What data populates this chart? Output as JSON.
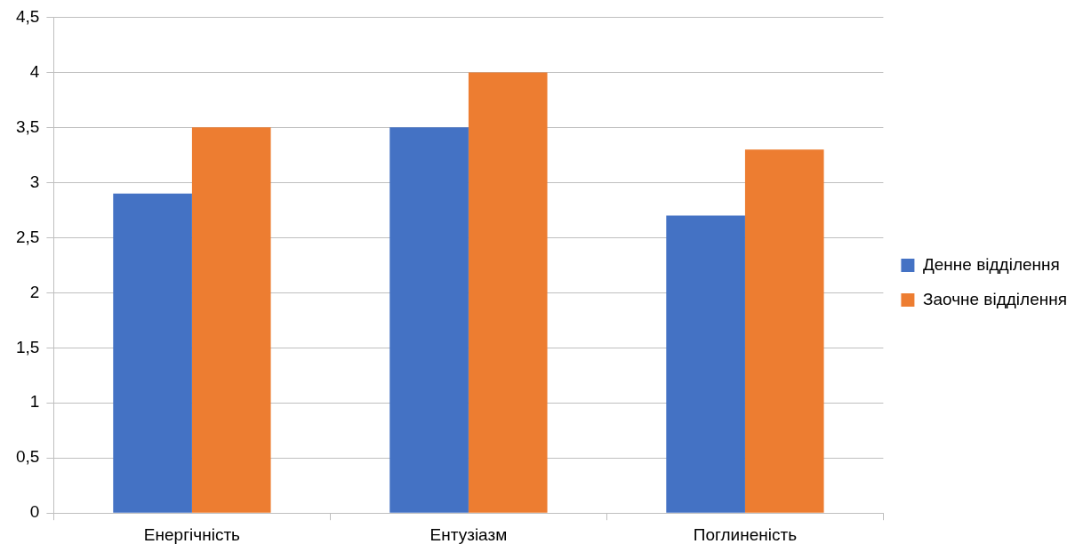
{
  "chart_data": {
    "type": "bar",
    "categories": [
      "Енергічність",
      "Ентузіазм",
      "Поглиненість"
    ],
    "series": [
      {
        "name": "Денне відділення",
        "color": "#4472c4",
        "values": [
          2.9,
          3.5,
          2.7
        ]
      },
      {
        "name": "Заочне відділення",
        "color": "#ed7d31",
        "values": [
          3.5,
          4,
          3.3
        ]
      }
    ],
    "ylim": [
      0,
      4.5
    ],
    "yticks": [
      0,
      {
        "value": 0.5,
        "label": "0,5"
      },
      1,
      {
        "value": 1.5,
        "label": "1,5"
      },
      2,
      {
        "value": 2.5,
        "label": "2,5"
      },
      3,
      {
        "value": 3.5,
        "label": "3,5"
      },
      4,
      {
        "value": 4.5,
        "label": "4,5"
      }
    ],
    "grid": "y",
    "legend": "right"
  }
}
